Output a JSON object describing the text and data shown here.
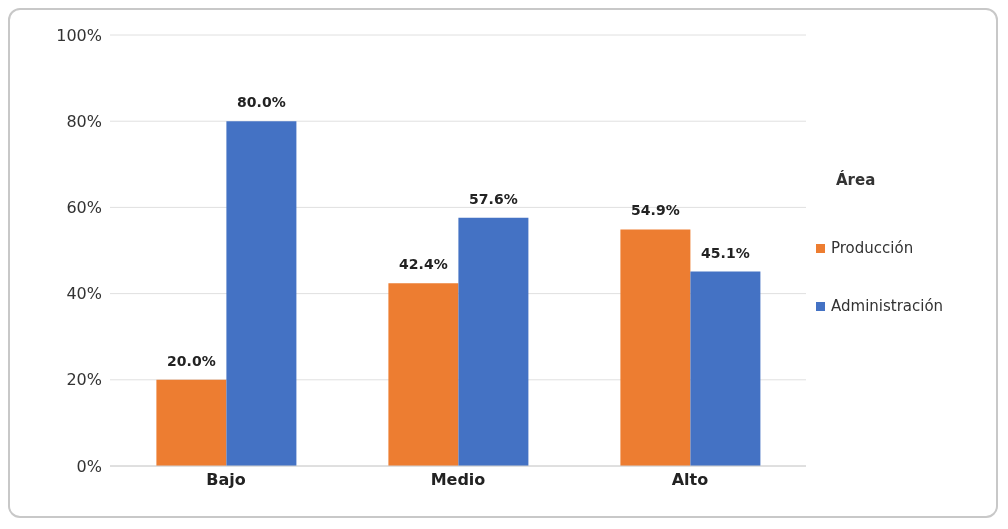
{
  "chart_data": {
    "type": "bar",
    "categories": [
      "Bajo",
      "Medio",
      "Alto"
    ],
    "legend_title": "Área",
    "legend": "right",
    "grid": "y",
    "ylim": [
      0,
      100
    ],
    "yticks": [
      {
        "value": 0,
        "label": "0%"
      },
      {
        "value": 20,
        "label": "20%"
      },
      {
        "value": 40,
        "label": "40%"
      },
      {
        "value": 60,
        "label": "60%"
      },
      {
        "value": 80,
        "label": "80%"
      },
      {
        "value": 100,
        "label": "100%"
      }
    ],
    "series": [
      {
        "name": "Producción",
        "color": "#ed7d31",
        "values": [
          20.0,
          42.4,
          54.9
        ],
        "value_labels": [
          "20.0%",
          "42.4%",
          "54.9%"
        ]
      },
      {
        "name": "Administración",
        "color": "#4472c4",
        "values": [
          80.0,
          57.6,
          45.1
        ],
        "value_labels": [
          "80.0%",
          "57.6%",
          "45.1%"
        ]
      }
    ]
  }
}
